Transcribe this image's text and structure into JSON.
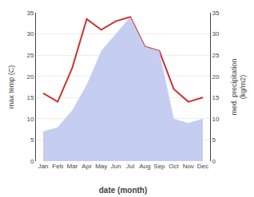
{
  "chart_data": {
    "type": "line",
    "xlabel": "date (month)",
    "ylabel": "max temp (C)",
    "y2label": "med. precipitation\n(kg/m2)",
    "categories": [
      "Jan",
      "Feb",
      "Mar",
      "Apr",
      "May",
      "Jun",
      "Jul",
      "Aug",
      "Sep",
      "Oct",
      "Nov",
      "Dec"
    ],
    "series": [
      {
        "type": "area",
        "color": "#c5cef0",
        "axis": "y2",
        "values": [
          7,
          8,
          12,
          18,
          26,
          30,
          34,
          27,
          26,
          10,
          9,
          10
        ]
      },
      {
        "type": "line",
        "color": "#cc3333",
        "values": [
          16,
          14,
          22,
          33.5,
          31,
          33,
          34,
          27,
          26,
          17,
          14,
          15
        ]
      }
    ],
    "ylim": [
      0,
      35
    ],
    "yticks": [
      0,
      5,
      10,
      15,
      20,
      25,
      30,
      35
    ],
    "y2lim": [
      0,
      35
    ],
    "y2ticks": [
      0,
      5,
      10,
      15,
      20,
      25,
      30,
      35
    ],
    "grid": true
  }
}
